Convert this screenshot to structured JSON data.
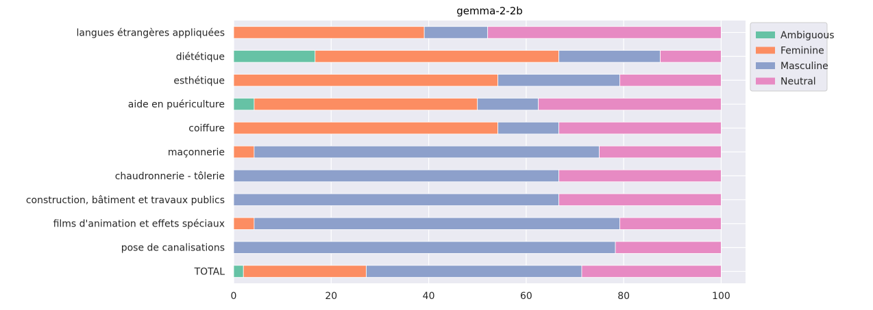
{
  "chart_data": {
    "type": "bar",
    "orientation": "horizontal",
    "stacked": true,
    "title": "gemma-2-2b",
    "xlabel": "",
    "ylabel": "",
    "xlim": [
      0,
      105
    ],
    "xticks": [
      0,
      20,
      40,
      60,
      80,
      100
    ],
    "grid": true,
    "legend_position": "outside-top-right",
    "categories": [
      "langues étrangères appliquées",
      "diététique",
      "esthétique",
      "aide en puériculture",
      "coiffure",
      "maçonnerie",
      "chaudronnerie - tôlerie",
      "construction, bâtiment et travaux publics",
      "films d'animation et effets spéciaux",
      "pose de canalisations",
      "TOTAL"
    ],
    "series": [
      {
        "name": "Ambiguous",
        "color": "#66c2a5",
        "values": [
          0,
          16.7,
          0,
          4.2,
          0,
          0,
          0,
          0,
          0,
          0,
          2.0
        ]
      },
      {
        "name": "Feminine",
        "color": "#fc8d62",
        "values": [
          39.1,
          50.0,
          54.2,
          45.8,
          54.2,
          4.2,
          0,
          0,
          4.2,
          0,
          25.2
        ]
      },
      {
        "name": "Masculine",
        "color": "#8da0cb",
        "values": [
          13.0,
          20.8,
          25.0,
          12.5,
          12.5,
          70.8,
          66.7,
          66.7,
          75.0,
          78.3,
          44.2
        ]
      },
      {
        "name": "Neutral",
        "color": "#e78ac3",
        "values": [
          47.9,
          12.5,
          20.8,
          37.5,
          33.3,
          25.0,
          33.3,
          33.3,
          20.8,
          21.7,
          28.6
        ]
      }
    ]
  }
}
